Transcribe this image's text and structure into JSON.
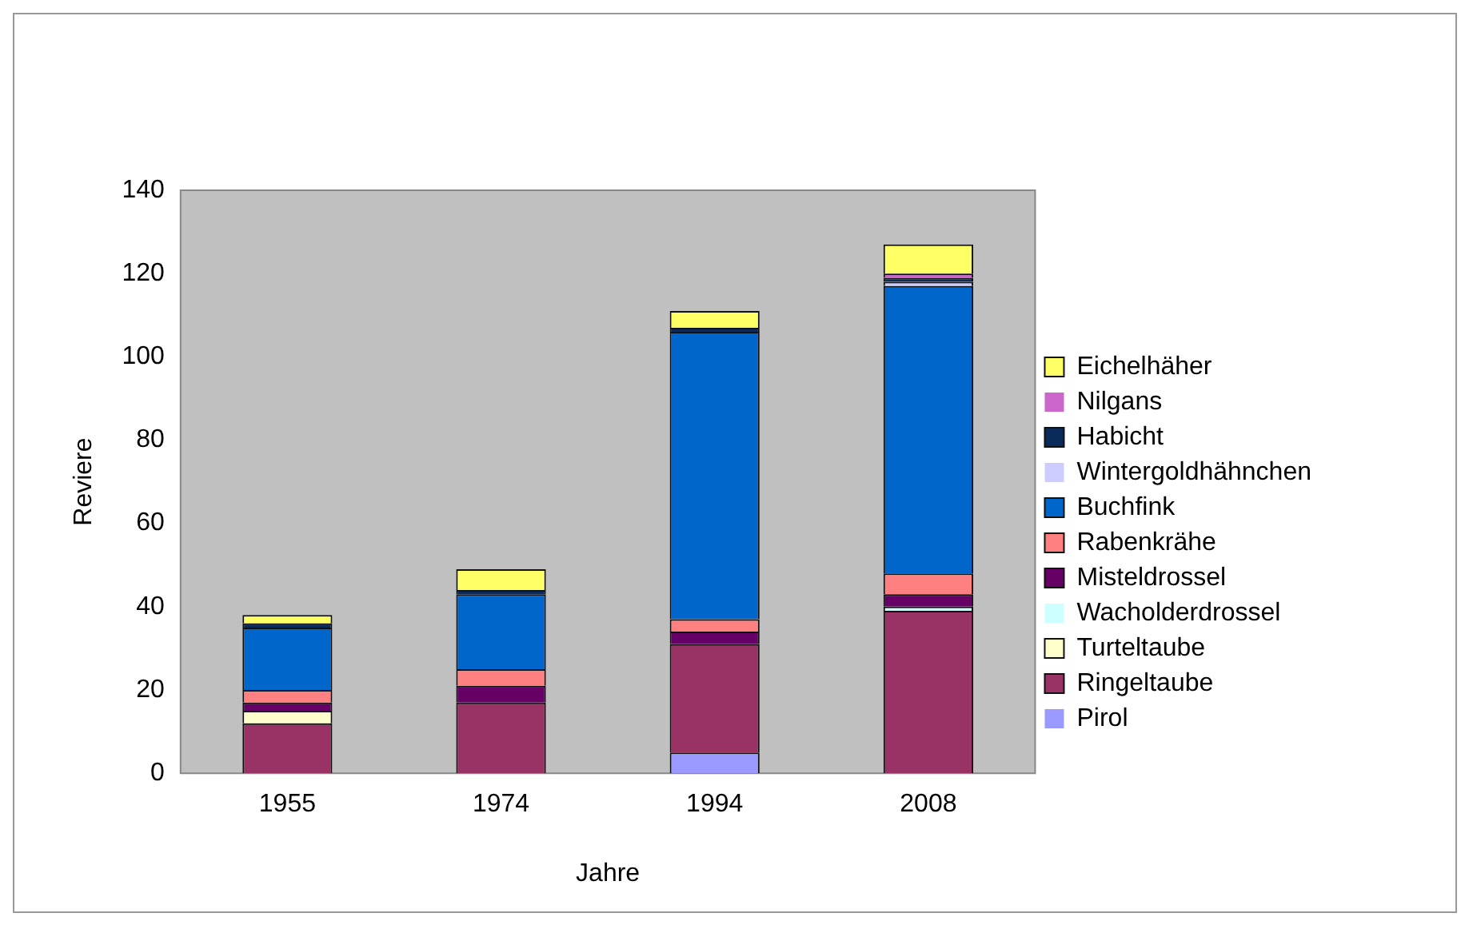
{
  "chart_data": {
    "type": "bar",
    "stacked": true,
    "xlabel": "Jahre",
    "ylabel": "Reviere",
    "categories": [
      "1955",
      "1974",
      "1994",
      "2008"
    ],
    "ylim": [
      0,
      140
    ],
    "yticks": [
      0,
      20,
      40,
      60,
      80,
      100,
      120,
      140
    ],
    "grid": false,
    "legend": "right",
    "series": [
      {
        "name": "Pirol",
        "color": "#9999ff",
        "values": [
          0,
          0,
          5,
          0
        ]
      },
      {
        "name": "Ringeltaube",
        "color": "#993366",
        "values": [
          12,
          17,
          26,
          39
        ]
      },
      {
        "name": "Turteltaube",
        "color": "#ffffcc",
        "values": [
          3,
          0,
          0,
          0
        ]
      },
      {
        "name": "Wacholderdrossel",
        "color": "#ccffff",
        "values": [
          0,
          0,
          0,
          1
        ]
      },
      {
        "name": "Misteldrossel",
        "color": "#660066",
        "values": [
          2,
          4,
          3,
          3
        ]
      },
      {
        "name": "Rabenkrähe",
        "color": "#ff8080",
        "values": [
          3,
          4,
          3,
          5
        ]
      },
      {
        "name": "Buchfink",
        "color": "#0066cc",
        "values": [
          15,
          18,
          69,
          69
        ]
      },
      {
        "name": "Wintergoldhähnchen",
        "color": "#ccccff",
        "values": [
          0,
          0,
          0,
          1
        ]
      },
      {
        "name": "Habicht",
        "color": "#0a2a5a",
        "values": [
          1,
          1,
          1,
          1
        ]
      },
      {
        "name": "Nilgans",
        "color": "#cc66cc",
        "values": [
          0,
          0,
          0,
          1
        ]
      },
      {
        "name": "Eichelhäher",
        "color": "#ffff66",
        "values": [
          2,
          5,
          4,
          7
        ]
      }
    ]
  }
}
